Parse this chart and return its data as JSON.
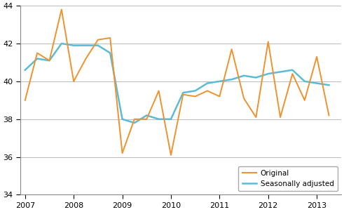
{
  "original": [
    39.0,
    41.5,
    41.1,
    43.8,
    40.0,
    41.2,
    42.2,
    42.3,
    36.2,
    38.0,
    38.0,
    39.5,
    36.1,
    39.3,
    39.2,
    39.5,
    39.2,
    41.7,
    39.1,
    38.1,
    42.1,
    38.1,
    40.4,
    39.0,
    41.3,
    38.2
  ],
  "seasonally_adjusted": [
    40.6,
    41.2,
    41.1,
    42.0,
    41.9,
    41.9,
    41.9,
    41.5,
    38.0,
    37.8,
    38.2,
    38.0,
    38.0,
    39.4,
    39.5,
    39.9,
    40.0,
    40.1,
    40.3,
    40.2,
    40.4,
    40.5,
    40.6,
    40.0,
    39.9,
    39.8
  ],
  "x_start_year": 2007,
  "quarters_per_year": 4,
  "n_points": 26,
  "ylim": [
    34,
    44
  ],
  "yticks": [
    34,
    36,
    38,
    40,
    42,
    44
  ],
  "xtick_years": [
    2007,
    2008,
    2009,
    2010,
    2011,
    2012,
    2013
  ],
  "xlim_end": 2013.5,
  "original_color": "#f0922b",
  "seasonally_adjusted_color": "#5bbcd6",
  "original_label": "Original",
  "seasonally_adjusted_label": "Seasonally adjusted",
  "background_color": "#ffffff",
  "grid_color": "#bbbbbb",
  "linewidth_original": 1.4,
  "linewidth_seasonal": 1.8
}
